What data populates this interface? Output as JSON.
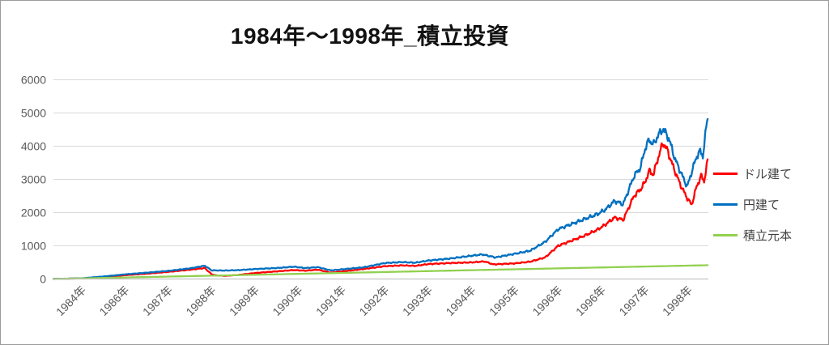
{
  "chart_data": {
    "type": "line",
    "title": "1984年～1998年_積立投資",
    "grid": true,
    "legend_position": "right",
    "ylim": [
      0,
      6000
    ],
    "y_ticks": [
      0,
      1000,
      2000,
      3000,
      4000,
      5000,
      6000
    ],
    "x_tick_labels": [
      "1984年",
      "1986年",
      "1987年",
      "1988年",
      "1989年",
      "1990年",
      "1991年",
      "1992年",
      "1993年",
      "1994年",
      "1995年",
      "1996年",
      "1996年",
      "1997年",
      "1998年"
    ],
    "x_domain": [
      -0.65,
      14.45
    ],
    "colors": {
      "title": "#111111",
      "axis_labels": "#595959",
      "gridlines": "#d9d9d9",
      "axis_line": "#c3c3c3",
      "legend_text": "#404040"
    },
    "series": [
      {
        "name": "ドル建て",
        "color": "#FF0000",
        "keypoints": [
          [
            -0.65,
            2
          ],
          [
            0,
            18
          ],
          [
            0.5,
            60
          ],
          [
            1,
            115
          ],
          [
            1.5,
            160
          ],
          [
            2,
            215
          ],
          [
            2.5,
            280
          ],
          [
            2.84,
            330
          ],
          [
            3.0,
            140
          ],
          [
            3.1,
            110
          ],
          [
            3.3,
            95
          ],
          [
            3.6,
            120
          ],
          [
            4,
            180
          ],
          [
            4.5,
            230
          ],
          [
            4.9,
            270
          ],
          [
            5.15,
            250
          ],
          [
            5.45,
            280
          ],
          [
            5.75,
            190
          ],
          [
            6,
            225
          ],
          [
            6.5,
            300
          ],
          [
            7,
            385
          ],
          [
            7.4,
            410
          ],
          [
            7.7,
            395
          ],
          [
            8,
            450
          ],
          [
            8.5,
            480
          ],
          [
            9,
            500
          ],
          [
            9.3,
            530
          ],
          [
            9.5,
            440
          ],
          [
            10,
            470
          ],
          [
            10.35,
            520
          ],
          [
            10.7,
            650
          ],
          [
            11,
            1000
          ],
          [
            11.3,
            1150
          ],
          [
            11.6,
            1300
          ],
          [
            11.9,
            1480
          ],
          [
            12.1,
            1650
          ],
          [
            12.3,
            1850
          ],
          [
            12.5,
            1780
          ],
          [
            12.75,
            2500
          ],
          [
            12.9,
            2700
          ],
          [
            13.0,
            2900
          ],
          [
            13.1,
            3250
          ],
          [
            13.2,
            3150
          ],
          [
            13.3,
            3620
          ],
          [
            13.42,
            4100
          ],
          [
            13.52,
            3880
          ],
          [
            13.65,
            3400
          ],
          [
            13.8,
            2900
          ],
          [
            13.95,
            2500
          ],
          [
            14.08,
            2230
          ],
          [
            14.2,
            2800
          ],
          [
            14.3,
            3100
          ],
          [
            14.37,
            2950
          ],
          [
            14.45,
            3560
          ]
        ]
      },
      {
        "name": "円建て",
        "color": "#0070C0",
        "keypoints": [
          [
            -0.65,
            2
          ],
          [
            0,
            22
          ],
          [
            0.5,
            75
          ],
          [
            1,
            140
          ],
          [
            1.5,
            190
          ],
          [
            2,
            245
          ],
          [
            2.5,
            320
          ],
          [
            2.84,
            400
          ],
          [
            3.0,
            260
          ],
          [
            3.3,
            255
          ],
          [
            3.6,
            265
          ],
          [
            4,
            300
          ],
          [
            4.5,
            330
          ],
          [
            4.9,
            370
          ],
          [
            5.15,
            330
          ],
          [
            5.45,
            355
          ],
          [
            5.75,
            260
          ],
          [
            6,
            290
          ],
          [
            6.5,
            350
          ],
          [
            7,
            480
          ],
          [
            7.4,
            510
          ],
          [
            7.7,
            490
          ],
          [
            8,
            555
          ],
          [
            8.5,
            615
          ],
          [
            9,
            700
          ],
          [
            9.25,
            740
          ],
          [
            9.55,
            650
          ],
          [
            10,
            760
          ],
          [
            10.35,
            850
          ],
          [
            10.7,
            1120
          ],
          [
            11,
            1500
          ],
          [
            11.3,
            1650
          ],
          [
            11.6,
            1800
          ],
          [
            11.9,
            1950
          ],
          [
            12.1,
            2100
          ],
          [
            12.3,
            2350
          ],
          [
            12.5,
            2250
          ],
          [
            12.75,
            3100
          ],
          [
            12.9,
            3350
          ],
          [
            13.0,
            3900
          ],
          [
            13.1,
            4200
          ],
          [
            13.2,
            4050
          ],
          [
            13.3,
            4310
          ],
          [
            13.42,
            4520
          ],
          [
            13.55,
            4250
          ],
          [
            13.7,
            3600
          ],
          [
            13.85,
            3150
          ],
          [
            13.98,
            2780
          ],
          [
            14.1,
            3300
          ],
          [
            14.2,
            3700
          ],
          [
            14.28,
            3850
          ],
          [
            14.34,
            3700
          ],
          [
            14.45,
            4900
          ]
        ]
      },
      {
        "name": "積立元本",
        "color": "#92D050",
        "keypoints": [
          [
            -0.65,
            0
          ],
          [
            14.45,
            415
          ]
        ]
      }
    ]
  }
}
